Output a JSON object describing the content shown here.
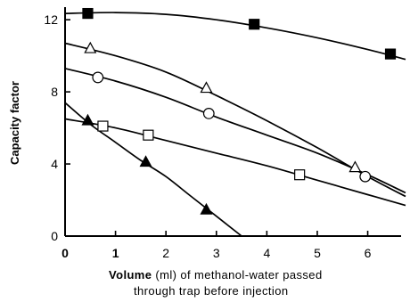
{
  "chart_data": {
    "type": "scatter",
    "title": "",
    "xlabel_bold": "Volume",
    "xlabel_rest": " (ml) of methanol-water passed",
    "xlabel_line2": "through trap before injection",
    "ylabel": "Capacity factor",
    "xlim": [
      0,
      6.75
    ],
    "ylim": [
      0,
      12.7
    ],
    "x_ticks": [
      0,
      1,
      2,
      3,
      4,
      5,
      6
    ],
    "x_tick_labels": [
      "0",
      "1",
      "2",
      "3",
      "4",
      "5",
      "6"
    ],
    "y_ticks": [
      0,
      4,
      8,
      12
    ],
    "y_tick_labels": [
      "0",
      "4",
      "8",
      "12"
    ],
    "grid": false,
    "series": [
      {
        "marker": "filled-square",
        "points": [
          [
            0.45,
            12.35
          ],
          [
            3.75,
            11.75
          ],
          [
            6.45,
            10.1
          ]
        ],
        "curve": [
          [
            0,
            12.35
          ],
          [
            1.0,
            12.4
          ],
          [
            2.0,
            12.3
          ],
          [
            3.0,
            12.0
          ],
          [
            4.0,
            11.55
          ],
          [
            5.0,
            11.0
          ],
          [
            6.0,
            10.35
          ],
          [
            6.75,
            9.8
          ]
        ]
      },
      {
        "marker": "open-triangle",
        "points": [
          [
            0.5,
            10.4
          ],
          [
            2.8,
            8.2
          ],
          [
            5.75,
            3.8
          ]
        ],
        "curve": [
          [
            0,
            10.7
          ],
          [
            1.0,
            10.0
          ],
          [
            2.0,
            9.1
          ],
          [
            3.0,
            7.8
          ],
          [
            4.0,
            6.4
          ],
          [
            5.0,
            4.9
          ],
          [
            6.0,
            3.3
          ],
          [
            6.75,
            2.2
          ]
        ]
      },
      {
        "marker": "open-circle",
        "points": [
          [
            0.65,
            8.8
          ],
          [
            2.85,
            6.8
          ],
          [
            5.95,
            3.3
          ]
        ],
        "curve": [
          [
            0,
            9.3
          ],
          [
            1.0,
            8.6
          ],
          [
            2.0,
            7.7
          ],
          [
            3.0,
            6.6
          ],
          [
            4.0,
            5.6
          ],
          [
            5.0,
            4.6
          ],
          [
            6.0,
            3.4
          ],
          [
            6.75,
            2.4
          ]
        ]
      },
      {
        "marker": "open-square",
        "points": [
          [
            0.75,
            6.1
          ],
          [
            1.65,
            5.6
          ],
          [
            4.65,
            3.4
          ]
        ],
        "curve": [
          [
            0,
            6.5
          ],
          [
            1.0,
            6.0
          ],
          [
            2.0,
            5.3
          ],
          [
            3.0,
            4.6
          ],
          [
            4.0,
            3.9
          ],
          [
            5.0,
            3.1
          ],
          [
            6.0,
            2.3
          ],
          [
            6.75,
            1.7
          ]
        ]
      },
      {
        "marker": "filled-triangle",
        "points": [
          [
            0.45,
            6.4
          ],
          [
            1.6,
            4.1
          ],
          [
            2.8,
            1.45
          ]
        ],
        "curve": [
          [
            0,
            7.4
          ],
          [
            0.5,
            6.2
          ],
          [
            1.0,
            5.2
          ],
          [
            1.5,
            4.2
          ],
          [
            2.0,
            3.3
          ],
          [
            2.5,
            2.2
          ],
          [
            3.0,
            1.1
          ],
          [
            3.5,
            0
          ]
        ]
      }
    ]
  }
}
